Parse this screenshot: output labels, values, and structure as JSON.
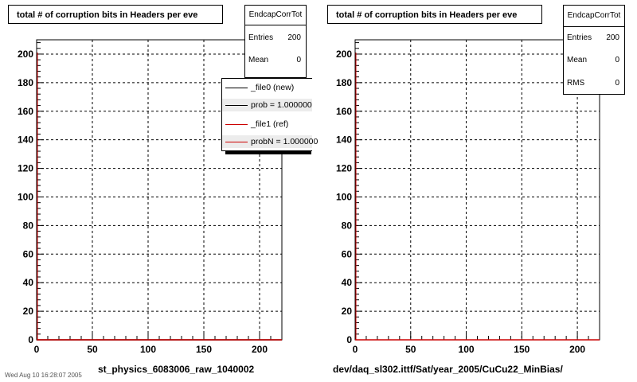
{
  "chart_data": [
    {
      "type": "line",
      "title": "total # of corruption bits in Headers per eve",
      "xlim": [
        0,
        220
      ],
      "ylim": [
        0,
        210
      ],
      "x_ticks": [
        0,
        50,
        100,
        150,
        200
      ],
      "y_ticks": [
        0,
        20,
        40,
        60,
        80,
        100,
        120,
        140,
        160,
        180,
        200
      ],
      "grid": true,
      "series": [
        {
          "name": "_file0 (new)",
          "color": "#000000",
          "x": [
            0,
            220
          ],
          "y": [
            0,
            0
          ]
        },
        {
          "name": "_file1 (ref)",
          "color": "#cc0000",
          "x": [
            0,
            220
          ],
          "y": [
            0,
            0
          ]
        }
      ],
      "stats": {
        "name": "EndcapCorrTot",
        "entries": "200",
        "mean": "0"
      },
      "legend": [
        {
          "label": "_file0 (new)",
          "color": "#000000"
        },
        {
          "label": "prob = 1.000000",
          "color": "#000000"
        },
        {
          "label": "_file1 (ref)",
          "color": "#cc0000"
        },
        {
          "label": "probN = 1.000000",
          "color": "#cc0000"
        }
      ],
      "xlabel": "st_physics_6083006_raw_1040002"
    },
    {
      "type": "line",
      "title": "total # of corruption bits in Headers per eve",
      "xlim": [
        0,
        220
      ],
      "ylim": [
        0,
        210
      ],
      "x_ticks": [
        0,
        50,
        100,
        150,
        200
      ],
      "y_ticks": [
        0,
        20,
        40,
        60,
        80,
        100,
        120,
        140,
        160,
        180,
        200
      ],
      "grid": true,
      "series": [
        {
          "color": "#cc0000",
          "x": [
            0,
            220
          ],
          "y": [
            0,
            0
          ]
        }
      ],
      "stats": {
        "name": "EndcapCorrTot",
        "entries": "200",
        "mean": "0",
        "rms": "0"
      },
      "xlabel": "dev/daq_sl302.ittf/Sat/year_2005/CuCu22_MinBias/"
    }
  ],
  "labels": {
    "entries": "Entries",
    "mean": "Mean",
    "rms": "RMS"
  },
  "footer_date": "Wed Aug 10 16:28:07 2005"
}
